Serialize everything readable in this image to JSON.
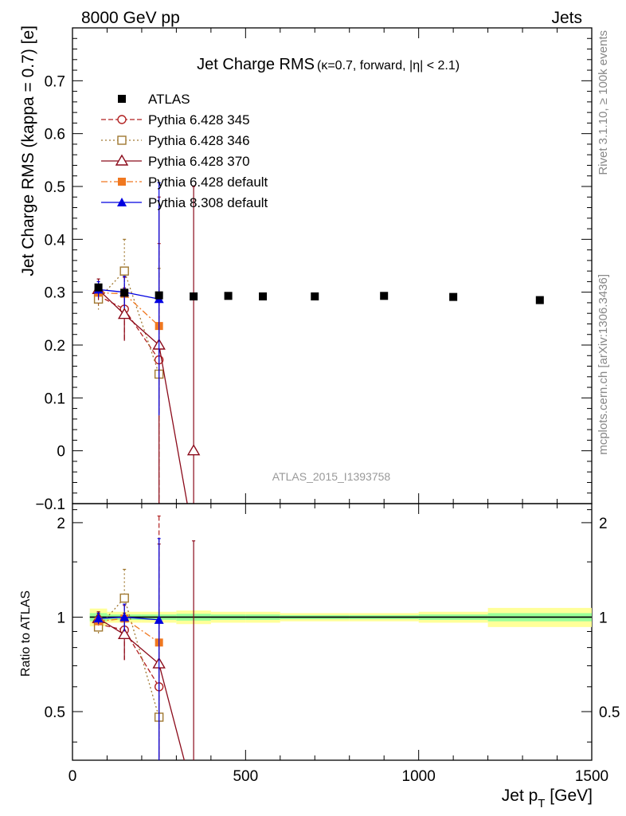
{
  "header": {
    "energy_label": "8000 GeV pp",
    "process_label": "Jets",
    "rivet_label": "Rivet 3.1.10, ≥ 100k events",
    "mcplots_label": "mcplots.cern.ch [arXiv:1306.3436]",
    "analysis_label": "ATLAS_2015_I1393758"
  },
  "chart_data": [
    {
      "type": "scatter",
      "panel": "main",
      "title": "Jet Charge RMS",
      "subtitle": "(κ=0.7, forward, |η| < 2.1)",
      "ylabel": "Jet Charge RMS (kappa = 0.7) [e]",
      "xlabel": "Jet p_T [GeV]",
      "xlim": [
        0,
        1500
      ],
      "ylim": [
        -0.1,
        0.8
      ],
      "yticks": [
        "−0.1",
        "0",
        "0.1",
        "0.2",
        "0.3",
        "0.4",
        "0.5",
        "0.6",
        "0.7"
      ],
      "xticks": [
        "0",
        "500",
        "1000",
        "1500"
      ],
      "legend_position": "top-left",
      "series": [
        {
          "name": "ATLAS",
          "color": "#000000",
          "marker": "filled-square",
          "x": [
            75,
            150,
            250,
            350,
            450,
            550,
            700,
            900,
            1100,
            1350
          ],
          "y": [
            0.309,
            0.299,
            0.294,
            0.292,
            0.293,
            0.292,
            0.292,
            0.293,
            0.291,
            0.285
          ]
        },
        {
          "name": "Pythia 6.428 345",
          "color": "#b22222",
          "marker": "open-circle",
          "line": "dashed",
          "x": [
            75,
            150,
            250
          ],
          "y": [
            0.293,
            0.268,
            0.172
          ],
          "yerr": [
            0.02,
            0.06,
            0.22
          ]
        },
        {
          "name": "Pythia 6.428 346",
          "color": "#a07830",
          "marker": "open-square",
          "line": "dotted",
          "x": [
            75,
            150,
            250
          ],
          "y": [
            0.287,
            0.34,
            0.145
          ],
          "yerr": [
            0.02,
            0.06,
            0.2
          ]
        },
        {
          "name": "Pythia 6.428 370",
          "color": "#8b0a1a",
          "marker": "open-triangle",
          "line": "solid",
          "x": [
            75,
            150,
            250,
            350
          ],
          "y": [
            0.305,
            0.258,
            0.2,
            0.0
          ],
          "yerr": [
            0.02,
            0.05,
            0.28,
            0.5
          ]
        },
        {
          "name": "Pythia 6.428 default",
          "color": "#f07820",
          "marker": "filled-square",
          "line": "dashdot",
          "x": [
            75,
            150,
            250
          ],
          "y": [
            0.299,
            0.297,
            0.236
          ]
        },
        {
          "name": "Pythia 8.308 default",
          "color": "#0000e0",
          "marker": "filled-triangle",
          "line": "solid",
          "x": [
            75,
            150,
            250
          ],
          "y": [
            0.305,
            0.3,
            0.287
          ],
          "yerr": [
            0.015,
            0.03,
            0.22
          ]
        }
      ]
    },
    {
      "type": "line",
      "panel": "ratio",
      "ylabel": "Ratio to ATLAS",
      "xlabel": "Jet p_T [GeV]",
      "xlim": [
        0,
        1500
      ],
      "ylim": [
        0.35,
        2.3
      ],
      "ytick_labels": [
        "0.5",
        "1",
        "2"
      ],
      "xtick_labels": [
        "0",
        "500",
        "1000",
        "1500"
      ],
      "uncertainty_band": {
        "colors": [
          "#ffff99",
          "#99ff99"
        ],
        "x_edges": [
          50,
          100,
          200,
          300,
          400,
          500,
          600,
          800,
          1000,
          1200,
          1500
        ],
        "outer_halfwidth": [
          0.065,
          0.04,
          0.04,
          0.05,
          0.04,
          0.04,
          0.03,
          0.03,
          0.04,
          0.07
        ],
        "inner_halfwidth": [
          0.03,
          0.02,
          0.02,
          0.025,
          0.02,
          0.02,
          0.015,
          0.015,
          0.02,
          0.03
        ]
      },
      "series": [
        {
          "name": "Pythia 6.428 345",
          "color": "#b22222",
          "marker": "open-circle",
          "line": "dashed",
          "x": [
            75,
            150,
            250
          ],
          "y": [
            0.95,
            0.91,
            0.6
          ],
          "yerr": [
            0.05,
            0.18,
            1.5
          ]
        },
        {
          "name": "Pythia 6.428 346",
          "color": "#a07830",
          "marker": "open-square",
          "line": "dotted",
          "x": [
            75,
            150,
            250
          ],
          "y": [
            0.93,
            1.15,
            0.48
          ],
          "yerr": [
            0.05,
            0.27,
            0.5
          ]
        },
        {
          "name": "Pythia 6.428 370",
          "color": "#8b0a1a",
          "marker": "open-triangle",
          "line": "solid",
          "x": [
            75,
            150,
            250,
            350
          ],
          "y": [
            0.99,
            0.88,
            0.71,
            0.0
          ],
          "yerr": [
            0.05,
            0.15,
            1.0,
            1.75
          ]
        },
        {
          "name": "Pythia 6.428 default",
          "color": "#f07820",
          "marker": "filled-square",
          "line": "dashdot",
          "x": [
            75,
            150,
            250
          ],
          "y": [
            0.97,
            0.99,
            0.83
          ]
        },
        {
          "name": "Pythia 8.308 default",
          "color": "#0000e0",
          "marker": "filled-triangle",
          "line": "solid",
          "x": [
            75,
            150,
            250
          ],
          "y": [
            0.99,
            1.0,
            0.98
          ],
          "yerr": [
            0.04,
            0.1,
            0.8
          ]
        }
      ]
    }
  ]
}
